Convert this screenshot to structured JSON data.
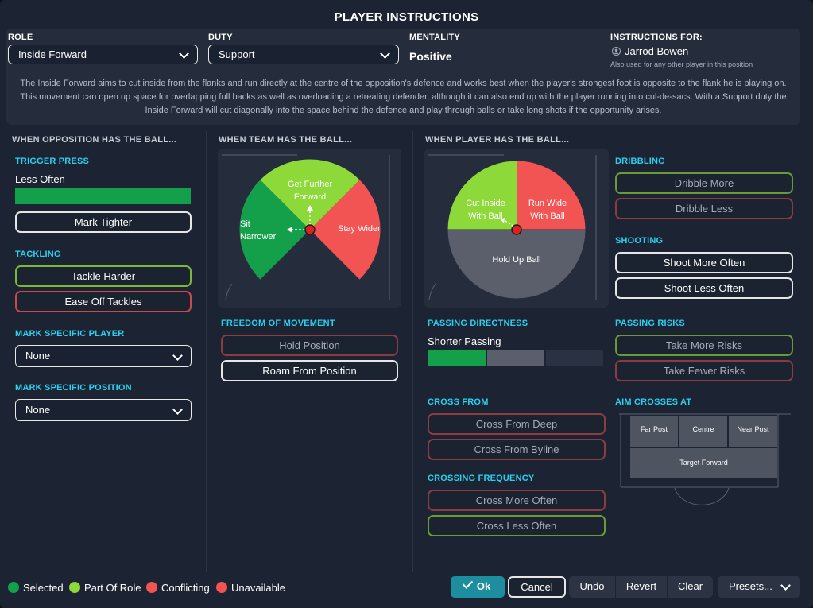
{
  "title": "PLAYER INSTRUCTIONS",
  "header": {
    "role_label": "ROLE",
    "role_value": "Inside Forward",
    "duty_label": "DUTY",
    "duty_value": "Support",
    "mentality_label": "MENTALITY",
    "mentality_value": "Positive",
    "instructions_label": "INSTRUCTIONS FOR:",
    "player_name": "Jarrod Bowen",
    "player_note": "Also used for any other player in this position",
    "description": "The Inside Forward aims to cut inside from the flanks and run directly at the centre of the opposition's defence and works best when the player's strongest foot is opposite to the flank he is playing on. This movement can open up space for overlapping full backs as well as overloading a retreating defender, although it can also end up with the player running into cul-de-sacs. With a Support duty the Inside Forward will cut diagonally into the space behind the defence and play through balls or take long shots if the opportunity arises."
  },
  "opposition": {
    "heading": "WHEN OPPOSITION HAS THE BALL...",
    "trigger_press": "TRIGGER PRESS",
    "trigger_value": "Less Often",
    "mark_tighter": "Mark Tighter",
    "tackling": "TACKLING",
    "tackle_harder": "Tackle Harder",
    "ease_off": "Ease Off Tackles",
    "mark_player": "MARK SPECIFIC PLAYER",
    "mark_player_value": "None",
    "mark_position": "MARK SPECIFIC POSITION",
    "mark_position_value": "None"
  },
  "team": {
    "heading": "WHEN TEAM HAS THE BALL...",
    "get_further_forward": "Get Further Forward",
    "sit_narrower": "Sit Narrower",
    "stay_wider": "Stay Wider",
    "freedom": "FREEDOM OF MOVEMENT",
    "hold_position": "Hold Position",
    "roam": "Roam From Position"
  },
  "player": {
    "heading": "WHEN PLAYER HAS THE BALL...",
    "cut_inside": "Cut Inside With Ball",
    "run_wide": "Run Wide With Ball",
    "hold_up": "Hold Up Ball",
    "passing_directness": "PASSING DIRECTNESS",
    "passing_value": "Shorter Passing",
    "cross_from": "CROSS FROM",
    "cross_deep": "Cross From Deep",
    "cross_byline": "Cross From Byline",
    "crossing_frequency": "CROSSING FREQUENCY",
    "cross_more": "Cross More Often",
    "cross_less": "Cross Less Often",
    "dribbling": "DRIBBLING",
    "dribble_more": "Dribble More",
    "dribble_less": "Dribble Less",
    "shooting": "SHOOTING",
    "shoot_more": "Shoot More Often",
    "shoot_less": "Shoot Less Often",
    "passing_risks": "PASSING RISKS",
    "take_more_risks": "Take More Risks",
    "take_fewer_risks": "Take Fewer Risks",
    "aim_crosses": "AIM CROSSES AT",
    "far_post": "Far Post",
    "centre": "Centre",
    "near_post": "Near Post",
    "target_forward": "Target Forward"
  },
  "legend": {
    "selected": "Selected",
    "part_of_role": "Part Of Role",
    "conflicting": "Conflicting",
    "unavailable": "Unavailable"
  },
  "footer": {
    "ok": "Ok",
    "cancel": "Cancel",
    "undo": "Undo",
    "revert": "Revert",
    "clear": "Clear",
    "presets": "Presets..."
  },
  "colors": {
    "selected": "#14a04a",
    "part_of_role": "#8dd93a",
    "conflicting": "#f25454",
    "accent": "#1d8ea0"
  }
}
